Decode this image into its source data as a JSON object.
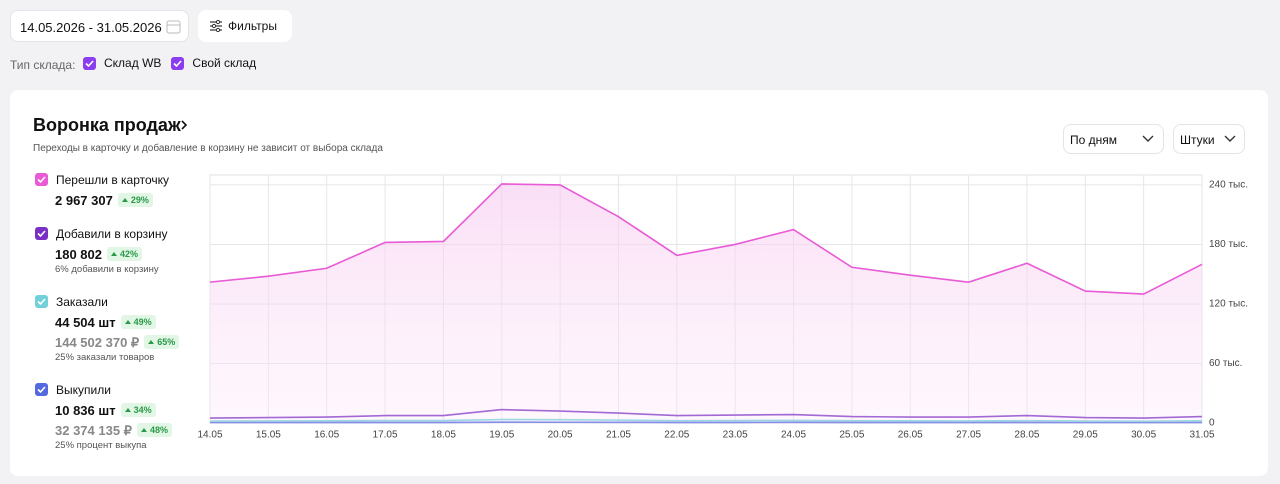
{
  "filters": {
    "date_range": "14.05.2026 - 31.05.2026",
    "filters_button": "Фильтры",
    "warehouse_label": "Тип склада:",
    "warehouses": [
      "Склад WB",
      "Свой склад"
    ]
  },
  "funnel": {
    "title": "Воронка продаж",
    "subtitle": "Переходы в карточку и добавление в корзину не зависит от выбора склада",
    "period_select": "По дням",
    "unit_select": "Штуки",
    "chart_data": {
      "type": "line",
      "x": [
        "14.05",
        "15.05",
        "16.05",
        "17.05",
        "18.05",
        "19.05",
        "20.05",
        "21.05",
        "22.05",
        "23.05",
        "24.05",
        "25.05",
        "26.05",
        "27.05",
        "28.05",
        "29.05",
        "30.05",
        "31.05"
      ],
      "series": [
        {
          "name": "Перешли в карточку",
          "color": "#e85ad6",
          "total": "2 967 307",
          "change": "29%",
          "fill_area": true,
          "values": [
            142000,
            148000,
            156000,
            182000,
            183000,
            241000,
            240000,
            208000,
            169000,
            180000,
            195000,
            157000,
            149000,
            142000,
            161000,
            133000,
            130000,
            160000
          ]
        },
        {
          "name": "Добавили в корзину",
          "color": "#7a30c4",
          "total": "180 802",
          "change": "42%",
          "note": "6% добавили в корзину",
          "values": [
            5000,
            5500,
            6000,
            7500,
            7500,
            13500,
            12000,
            10000,
            7500,
            8000,
            8500,
            6500,
            6000,
            6000,
            7500,
            5500,
            5000,
            6500
          ]
        },
        {
          "name": "Заказали",
          "color": "#72d0d8",
          "total": "44 504 шт",
          "change": "49%",
          "amount": "144 502 370 ₽",
          "amount_change": "65%",
          "note": "25% заказали товаров",
          "values": [
            2000,
            2100,
            2200,
            2500,
            2500,
            3500,
            3300,
            2900,
            2400,
            2500,
            2600,
            2300,
            2200,
            2100,
            2400,
            2000,
            1900,
            2200
          ]
        },
        {
          "name": "Выкупили",
          "color": "#5468e0",
          "total": "10 836 шт",
          "change": "34%",
          "amount": "32 374 135 ₽",
          "amount_change": "48%",
          "note": "25% процент выкупа",
          "values": [
            500,
            550,
            550,
            600,
            600,
            800,
            750,
            700,
            600,
            600,
            650,
            600,
            550,
            550,
            600,
            500,
            500,
            550
          ]
        }
      ],
      "ylim": [
        0,
        250000
      ],
      "yticks": [
        0,
        {
          "value": 60000,
          "label": "60 тыс."
        },
        {
          "value": 120000,
          "label": "120 тыс."
        },
        {
          "value": 180000,
          "label": "180 тыс."
        },
        {
          "value": 240000,
          "label": "240 тыс."
        }
      ],
      "grid": true
    }
  }
}
